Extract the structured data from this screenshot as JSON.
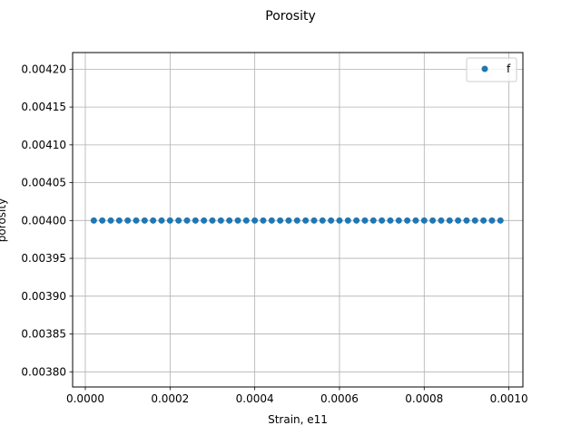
{
  "chart_data": {
    "type": "scatter",
    "title": "Porosity",
    "xlabel": "Strain, e11",
    "ylabel": "porosity",
    "xlim": [
      -3e-05,
      0.001033
    ],
    "ylim": [
      0.00378,
      0.004222
    ],
    "xticks": [
      0.0,
      0.0002,
      0.0004,
      0.0006,
      0.0008,
      0.001
    ],
    "xtick_labels": [
      "0.0000",
      "0.0002",
      "0.0004",
      "0.0006",
      "0.0008",
      "0.0010"
    ],
    "yticks": [
      0.0038,
      0.00385,
      0.0039,
      0.00395,
      0.004,
      0.00405,
      0.0041,
      0.00415,
      0.0042
    ],
    "ytick_labels": [
      "0.00380",
      "0.00385",
      "0.00390",
      "0.00395",
      "0.00400",
      "0.00405",
      "0.00410",
      "0.00415",
      "0.00420"
    ],
    "grid": true,
    "legend": "top-right",
    "series": [
      {
        "name": "f",
        "color": "#1f77b4",
        "x": [
          2e-05,
          4e-05,
          6e-05,
          8e-05,
          0.0001,
          0.00012,
          0.00014,
          0.00016,
          0.00018,
          0.0002,
          0.00022,
          0.00024,
          0.00026,
          0.00028,
          0.0003,
          0.00032,
          0.00034,
          0.00036,
          0.00038,
          0.0004,
          0.00042,
          0.00044,
          0.00046,
          0.00048,
          0.0005,
          0.00052,
          0.00054,
          0.00056,
          0.00058,
          0.0006,
          0.00062,
          0.00064,
          0.00066,
          0.00068,
          0.0007,
          0.00072,
          0.00074,
          0.00076,
          0.00078,
          0.0008,
          0.00082,
          0.00084,
          0.00086,
          0.00088,
          0.0009,
          0.00092,
          0.00094,
          0.00096,
          0.00098
        ],
        "y": [
          0.004,
          0.004,
          0.004,
          0.004,
          0.004,
          0.004,
          0.004,
          0.004,
          0.004,
          0.004,
          0.004,
          0.004,
          0.004,
          0.004,
          0.004,
          0.004,
          0.004,
          0.004,
          0.004,
          0.004,
          0.004,
          0.004,
          0.004,
          0.004,
          0.004,
          0.004,
          0.004,
          0.004,
          0.004,
          0.004,
          0.004,
          0.004,
          0.004,
          0.004,
          0.004,
          0.004,
          0.004,
          0.004,
          0.004,
          0.004,
          0.004,
          0.004,
          0.004,
          0.004,
          0.004,
          0.004,
          0.004,
          0.004,
          0.004
        ]
      }
    ]
  }
}
